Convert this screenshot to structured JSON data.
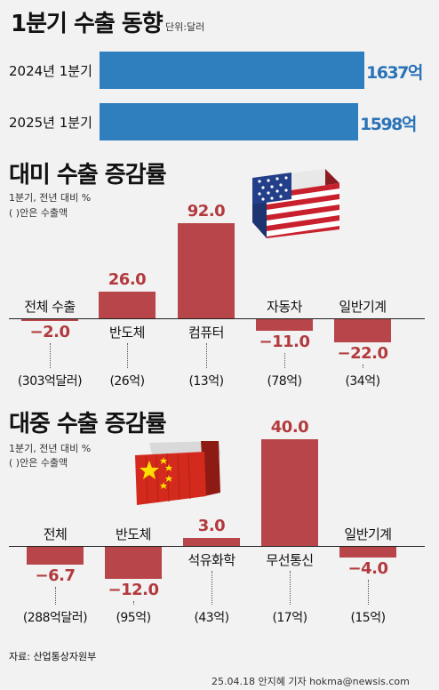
{
  "header": {
    "title": "1분기 수출 동향",
    "unit": "단위:달러"
  },
  "chart_data": [
    {
      "type": "bar",
      "orientation": "horizontal",
      "title": "1분기 수출 동향",
      "unit": "단위:달러",
      "categories": [
        "2024년 1분기",
        "2025년 1분기"
      ],
      "values": [
        1637,
        1598
      ],
      "value_labels": [
        "1637억",
        "1598억"
      ]
    },
    {
      "type": "bar",
      "title": "대미 수출 증감률",
      "notes": [
        "1분기, 전년 대비 %",
        "( )안은 수출액"
      ],
      "categories": [
        "전체 수출",
        "반도체",
        "컴퓨터",
        "자동차",
        "일반기계"
      ],
      "values": [
        -2.0,
        26.0,
        92.0,
        -11.0,
        -22.0
      ],
      "value_labels": [
        "−2.0",
        "26.0",
        "92.0",
        "−11.0",
        "−22.0"
      ],
      "amounts": [
        "(303억달러)",
        "(26억)",
        "(13억)",
        "(78억)",
        "(34억)"
      ]
    },
    {
      "type": "bar",
      "title": "대중 수출 증감률",
      "notes": [
        "1분기, 전년 대비 %",
        "( )안은 수출액"
      ],
      "categories": [
        "전체",
        "반도체",
        "석유화학",
        "무선통신",
        "일반기계"
      ],
      "values": [
        -6.7,
        -12.0,
        3.0,
        40.0,
        -4.0
      ],
      "value_labels": [
        "−6.7",
        "−12.0",
        "3.0",
        "40.0",
        "−4.0"
      ],
      "amounts": [
        "(288억달러)",
        "(95억)",
        "(43억)",
        "(17억)",
        "(15억)"
      ]
    }
  ],
  "footer": {
    "source": "자료: 산업통상자원부",
    "credit": "25.04.18 안지혜 기자 hokma@newsis.com"
  },
  "colors": {
    "blue_bar": "#2f7fbf",
    "red_bar": "#b84549",
    "background": "#f2f2f2"
  },
  "icons": [
    "us-flag-container-icon",
    "china-flag-container-icon"
  ]
}
